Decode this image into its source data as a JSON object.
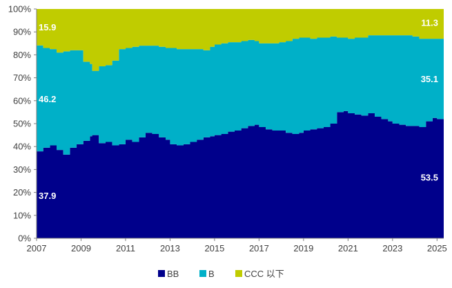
{
  "chart_data": {
    "type": "area",
    "stacked": true,
    "percent": true,
    "x_ticks": [
      "2007",
      "2009",
      "2011",
      "2013",
      "2015",
      "2017",
      "2019",
      "2021",
      "2023",
      "2025"
    ],
    "y_ticks": [
      "0%",
      "10%",
      "20%",
      "30%",
      "40%",
      "50%",
      "60%",
      "70%",
      "80%",
      "90%",
      "100%"
    ],
    "xlim": [
      2007,
      2025.3
    ],
    "ylim": [
      0,
      100
    ],
    "grid": false,
    "legend_position": "bottom",
    "x": [
      2007.0,
      2007.3,
      2007.6,
      2007.9,
      2008.2,
      2008.5,
      2008.8,
      2009.1,
      2009.4,
      2009.5,
      2009.8,
      2010.1,
      2010.4,
      2010.7,
      2011.0,
      2011.3,
      2011.6,
      2011.9,
      2012.2,
      2012.5,
      2012.8,
      2013.0,
      2013.3,
      2013.6,
      2013.9,
      2014.2,
      2014.5,
      2014.8,
      2015.0,
      2015.3,
      2015.6,
      2015.9,
      2016.2,
      2016.5,
      2016.8,
      2017.0,
      2017.3,
      2017.6,
      2017.9,
      2018.2,
      2018.5,
      2018.8,
      2019.0,
      2019.3,
      2019.6,
      2019.9,
      2020.2,
      2020.5,
      2020.8,
      2021.0,
      2021.3,
      2021.6,
      2021.9,
      2022.2,
      2022.5,
      2022.8,
      2023.0,
      2023.3,
      2023.6,
      2023.9,
      2024.2,
      2024.5,
      2024.8,
      2025.0,
      2025.3
    ],
    "series": [
      {
        "name": "BB",
        "color": "#00008B",
        "values": [
          37.9,
          39.5,
          40.5,
          38.5,
          36.5,
          39.5,
          41.0,
          42.5,
          44.5,
          45.0,
          41.5,
          42.0,
          40.5,
          41.0,
          43.0,
          42.0,
          44.0,
          46.0,
          45.5,
          44.0,
          43.0,
          41.0,
          40.5,
          41.0,
          42.0,
          43.0,
          44.0,
          44.5,
          45.0,
          45.5,
          46.5,
          47.0,
          48.0,
          49.0,
          49.5,
          48.5,
          47.5,
          47.0,
          47.0,
          46.0,
          45.5,
          46.0,
          47.0,
          47.5,
          48.0,
          48.5,
          50.0,
          55.0,
          55.5,
          54.5,
          54.0,
          53.5,
          54.5,
          53.0,
          52.0,
          51.0,
          50.0,
          49.5,
          49.0,
          49.0,
          48.5,
          51.0,
          52.5,
          52.0,
          53.5
        ]
      },
      {
        "name": "B",
        "color": "#00B0C8",
        "values": [
          46.2,
          43.5,
          42.0,
          42.5,
          45.0,
          42.5,
          41.0,
          34.5,
          31.5,
          28.0,
          33.5,
          33.5,
          37.0,
          41.5,
          40.0,
          41.5,
          40.0,
          38.0,
          38.5,
          39.5,
          40.0,
          42.0,
          42.0,
          41.5,
          40.5,
          39.5,
          38.0,
          39.0,
          39.5,
          39.5,
          39.0,
          38.5,
          38.0,
          37.5,
          36.5,
          36.5,
          37.5,
          38.0,
          38.5,
          40.0,
          41.5,
          41.5,
          40.5,
          39.5,
          39.5,
          39.0,
          38.0,
          32.5,
          32.0,
          32.5,
          33.5,
          34.0,
          34.0,
          35.5,
          36.5,
          37.5,
          38.5,
          39.0,
          39.5,
          39.0,
          38.5,
          36.0,
          34.5,
          35.0,
          35.1
        ]
      },
      {
        "name": "CCC 以下",
        "color": "#C0CC00",
        "values": [
          15.9,
          17.0,
          17.5,
          19.0,
          18.5,
          18.0,
          18.0,
          23.0,
          24.0,
          27.0,
          25.0,
          24.5,
          22.5,
          17.5,
          17.0,
          16.5,
          16.0,
          16.0,
          16.0,
          16.5,
          17.0,
          17.0,
          17.5,
          17.5,
          17.5,
          17.5,
          18.0,
          16.5,
          15.5,
          15.0,
          14.5,
          14.5,
          14.0,
          13.5,
          14.0,
          15.0,
          15.0,
          15.0,
          14.5,
          14.0,
          13.0,
          12.5,
          12.5,
          13.0,
          12.5,
          12.5,
          12.0,
          12.5,
          12.5,
          13.0,
          12.5,
          12.5,
          11.5,
          11.5,
          11.5,
          11.5,
          11.5,
          11.5,
          11.5,
          12.0,
          13.0,
          13.0,
          13.0,
          13.0,
          11.3
        ]
      }
    ],
    "data_labels": {
      "start": {
        "BB": "37.9",
        "B": "46.2",
        "CCC 以下": "15.9"
      },
      "end": {
        "BB": "53.5",
        "B": "35.1",
        "CCC 以下": "11.3"
      }
    }
  }
}
